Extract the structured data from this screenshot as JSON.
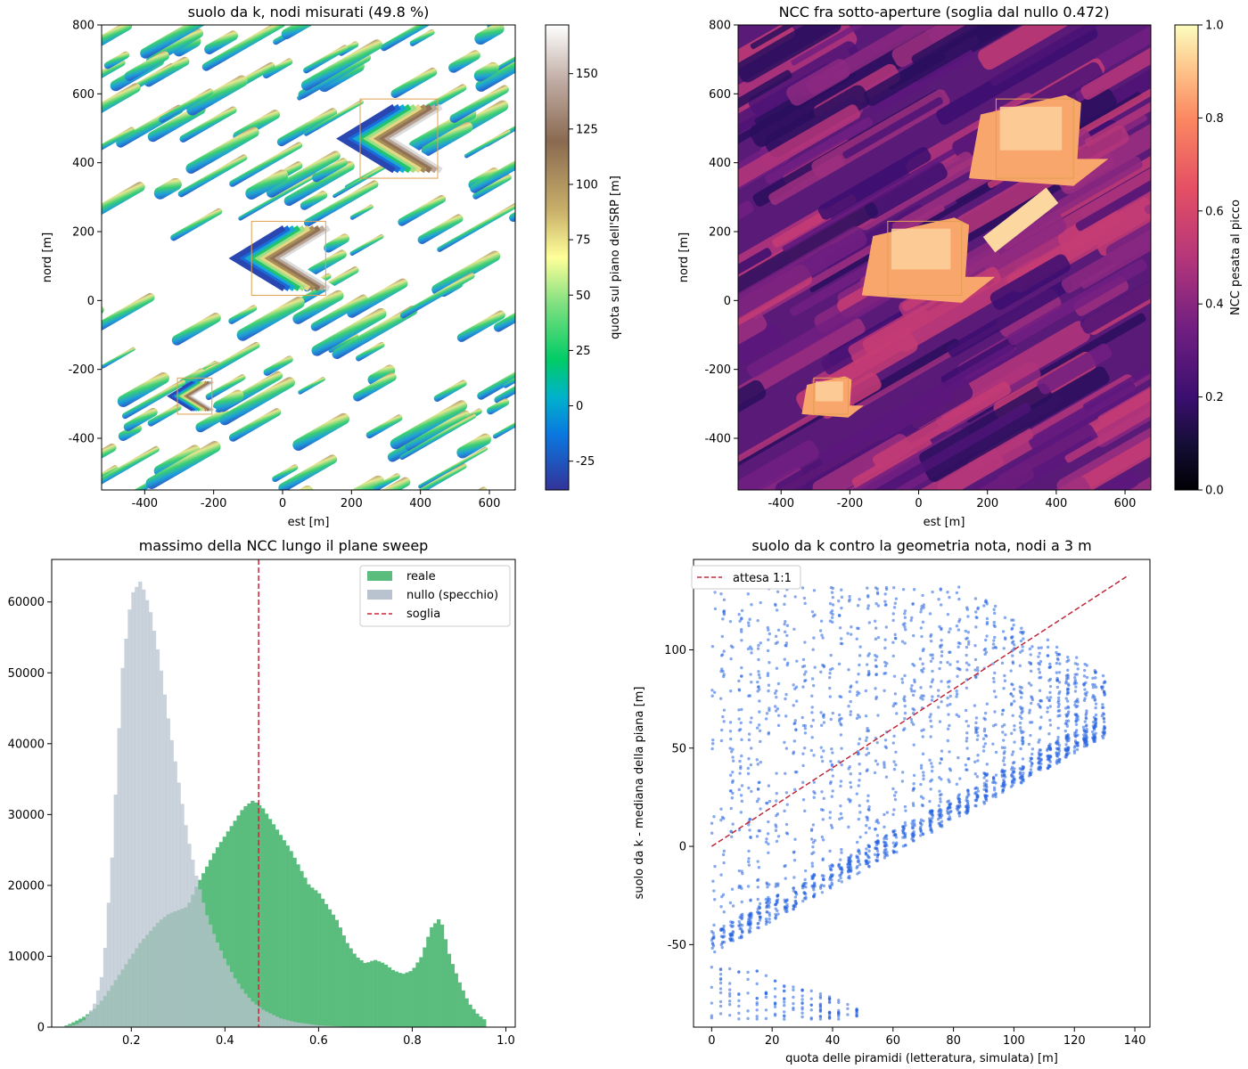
{
  "colors": {
    "real": "#5bbd7d",
    "null": "#b8c3cf",
    "threshold": "#c0283a",
    "scatter": "#2563e0",
    "box": "#e0a050"
  },
  "chart_data": [
    {
      "id": "ground-map",
      "type": "heatmap",
      "title": "suolo da k, nodi misurati (49.8 %)",
      "xlabel": "est [m]",
      "ylabel": "nord [m]",
      "xlim": [
        -525,
        675
      ],
      "ylim": [
        -550,
        800
      ],
      "xticks": [
        -400,
        -200,
        0,
        200,
        400,
        600
      ],
      "yticks": [
        -400,
        -200,
        0,
        200,
        400,
        600,
        800
      ],
      "colorbar": {
        "label": "quota sul piano dell'SRP [m]",
        "range": [
          -38,
          172
        ],
        "ticks": [
          -25,
          0,
          25,
          50,
          75,
          100,
          125,
          150
        ],
        "colormap": "terrain"
      },
      "boxes": [
        {
          "x0": -90,
          "x1": 125,
          "y0": 15,
          "y1": 230
        },
        {
          "x0": 225,
          "x1": 450,
          "y0": 355,
          "y1": 585
        },
        {
          "x0": -305,
          "x1": -205,
          "y0": -330,
          "y1": -225
        }
      ]
    },
    {
      "id": "ncc-map",
      "type": "heatmap",
      "title": "NCC fra sotto-aperture (soglia dal nullo 0.472)",
      "xlabel": "est [m]",
      "ylabel": "nord [m]",
      "xlim": [
        -525,
        675
      ],
      "ylim": [
        -550,
        800
      ],
      "xticks": [
        -400,
        -200,
        0,
        200,
        400,
        600
      ],
      "yticks": [
        -400,
        -200,
        0,
        200,
        400,
        600,
        800
      ],
      "colorbar": {
        "label": "NCC pesata al picco",
        "range": [
          0,
          1
        ],
        "ticks": [
          "0.0",
          "0.2",
          "0.4",
          "0.6",
          "0.8",
          "1.0"
        ],
        "colormap": "magma"
      },
      "boxes": [
        {
          "x0": -90,
          "x1": 125,
          "y0": 15,
          "y1": 230
        },
        {
          "x0": 225,
          "x1": 450,
          "y0": 355,
          "y1": 585
        },
        {
          "x0": -305,
          "x1": -205,
          "y0": -330,
          "y1": -225
        }
      ]
    },
    {
      "id": "ncc-hist",
      "type": "bar",
      "title": "massimo della NCC lungo il plane sweep",
      "xlim": [
        0.03,
        1.02
      ],
      "ylim": [
        0,
        66000
      ],
      "xticks": [
        "0.2",
        "0.4",
        "0.6",
        "0.8",
        "1.0"
      ],
      "yticks": [
        0,
        10000,
        20000,
        30000,
        40000,
        50000,
        60000
      ],
      "threshold": 0.472,
      "legend": {
        "position": "top-right",
        "entries": [
          "reale",
          "nullo (specchio)",
          "soglia"
        ]
      },
      "series": [
        {
          "name": "nullo (specchio)",
          "points": [
            [
              0.06,
              100
            ],
            [
              0.08,
              300
            ],
            [
              0.1,
              1000
            ],
            [
              0.12,
              3000
            ],
            [
              0.14,
              8000
            ],
            [
              0.16,
              25000
            ],
            [
              0.18,
              50000
            ],
            [
              0.2,
              61000
            ],
            [
              0.22,
              63000
            ],
            [
              0.24,
              59000
            ],
            [
              0.26,
              52000
            ],
            [
              0.28,
              43000
            ],
            [
              0.3,
              35000
            ],
            [
              0.32,
              27000
            ],
            [
              0.34,
              21000
            ],
            [
              0.36,
              16000
            ],
            [
              0.38,
              12500
            ],
            [
              0.4,
              9500
            ],
            [
              0.42,
              7000
            ],
            [
              0.44,
              5000
            ],
            [
              0.46,
              3500
            ],
            [
              0.48,
              2500
            ],
            [
              0.5,
              1800
            ],
            [
              0.52,
              1200
            ],
            [
              0.55,
              700
            ],
            [
              0.6,
              250
            ],
            [
              0.65,
              80
            ],
            [
              0.7,
              20
            ],
            [
              0.75,
              5
            ]
          ]
        },
        {
          "name": "reale",
          "points": [
            [
              0.06,
              200
            ],
            [
              0.08,
              800
            ],
            [
              0.1,
              1500
            ],
            [
              0.12,
              2500
            ],
            [
              0.14,
              4000
            ],
            [
              0.16,
              6000
            ],
            [
              0.18,
              8000
            ],
            [
              0.2,
              10000
            ],
            [
              0.22,
              12000
            ],
            [
              0.24,
              13500
            ],
            [
              0.26,
              15000
            ],
            [
              0.28,
              16000
            ],
            [
              0.3,
              16500
            ],
            [
              0.32,
              17000
            ],
            [
              0.34,
              20000
            ],
            [
              0.36,
              22500
            ],
            [
              0.38,
              25000
            ],
            [
              0.4,
              27000
            ],
            [
              0.42,
              29000
            ],
            [
              0.44,
              31000
            ],
            [
              0.46,
              32000
            ],
            [
              0.48,
              31000
            ],
            [
              0.5,
              29000
            ],
            [
              0.52,
              27000
            ],
            [
              0.54,
              25000
            ],
            [
              0.56,
              22500
            ],
            [
              0.58,
              20000
            ],
            [
              0.6,
              19000
            ],
            [
              0.62,
              17000
            ],
            [
              0.64,
              15000
            ],
            [
              0.66,
              12000
            ],
            [
              0.68,
              10000
            ],
            [
              0.7,
              9000
            ],
            [
              0.72,
              9500
            ],
            [
              0.74,
              9000
            ],
            [
              0.76,
              8000
            ],
            [
              0.78,
              7500
            ],
            [
              0.8,
              8000
            ],
            [
              0.82,
              10000
            ],
            [
              0.84,
              14000
            ],
            [
              0.86,
              15500
            ],
            [
              0.88,
              10000
            ],
            [
              0.9,
              6500
            ],
            [
              0.92,
              3500
            ],
            [
              0.94,
              1800
            ],
            [
              0.96,
              800
            ]
          ]
        }
      ]
    },
    {
      "id": "height-scatter",
      "type": "scatter",
      "title": "suolo da k contro la geometria nota, nodi a 3 m",
      "xlabel": "quota delle piramidi (letteratura, simulata) [m]",
      "ylabel": "suolo da k - mediana della piana [m]",
      "xlim": [
        -6,
        145
      ],
      "ylim": [
        -92,
        146
      ],
      "xticks": [
        0,
        20,
        40,
        60,
        80,
        100,
        120,
        140
      ],
      "yticks": [
        -50,
        0,
        50,
        100
      ],
      "reference_line": {
        "name": "attesa 1:1",
        "from": [
          0,
          0
        ],
        "to": [
          138,
          138
        ]
      },
      "legend": {
        "position": "top-left",
        "entries": [
          "attesa 1:1"
        ]
      }
    }
  ]
}
